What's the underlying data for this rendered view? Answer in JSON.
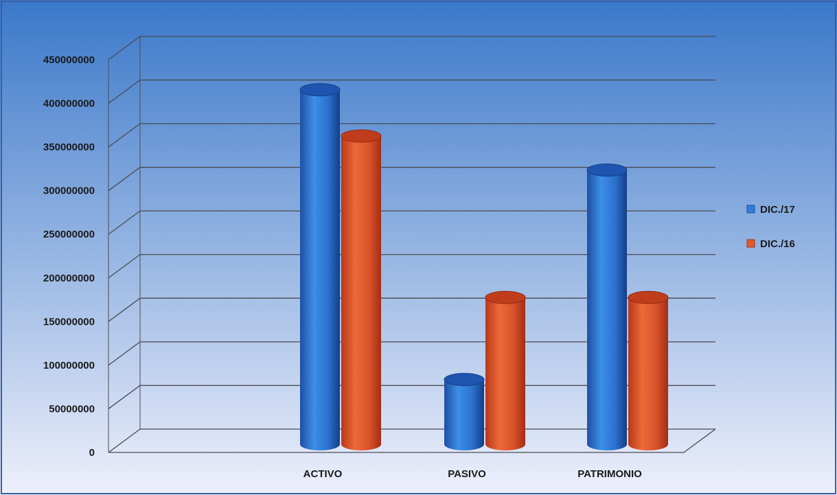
{
  "chart_data": {
    "type": "bar",
    "style": "3d-cylinder",
    "categories": [
      "ACTIVO",
      "PASIVO",
      "PATRIMONIO"
    ],
    "series": [
      {
        "name": "DIC./17",
        "values": [
          425000000,
          93000000,
          333000000
        ],
        "color": "#2f7fd8"
      },
      {
        "name": "DIC./16",
        "values": [
          372000000,
          187000000,
          187000000
        ],
        "color": "#e25b2c"
      }
    ],
    "yticks": [
      "0",
      "50000000",
      "100000000",
      "150000000",
      "200000000",
      "250000000",
      "300000000",
      "350000000",
      "400000000",
      "450000000"
    ],
    "ylim": [
      0,
      450000000
    ],
    "grid": true,
    "legend_position": "right",
    "title": "",
    "xlabel": "",
    "ylabel": ""
  },
  "colors": {
    "background_top": "#3a78c9",
    "background_bottom": "#eef0fb",
    "gridline": "#4a4a52",
    "frame": "#3a5fa0"
  }
}
